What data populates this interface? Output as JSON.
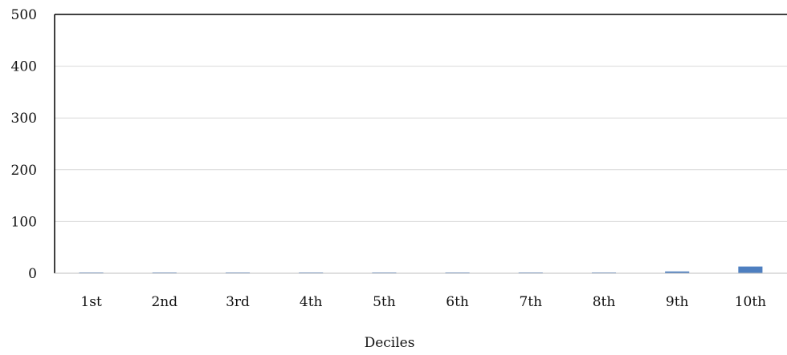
{
  "chart_data": {
    "type": "bar",
    "title": "",
    "xlabel": "Deciles",
    "ylabel": "",
    "categories": [
      "1st",
      "2nd",
      "3rd",
      "4th",
      "5th",
      "6th",
      "7th",
      "8th",
      "9th",
      "10th"
    ],
    "values": [
      0.3,
      0.6,
      0.4,
      0.5,
      0.8,
      0.9,
      1.0,
      1.5,
      3.5,
      13
    ],
    "ylim": [
      0,
      500
    ],
    "yticks": [
      "0",
      "100",
      "200",
      "300",
      "400",
      "500"
    ],
    "grid": true,
    "legend": "none",
    "bar_color": "#4e7fc0"
  }
}
